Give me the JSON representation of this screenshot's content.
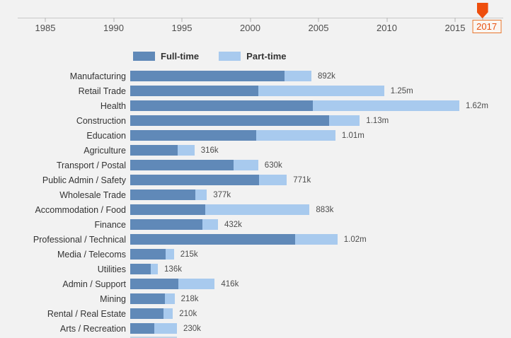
{
  "colors": {
    "full_time": "#6089b8",
    "part_time": "#a8caee",
    "accent_orange": "#ee4e0d",
    "axis_grey": "#c9c9c9",
    "background": "#f2f2f2"
  },
  "timeline": {
    "years": [
      "1985",
      "1990",
      "1995",
      "2000",
      "2005",
      "2010",
      "2015"
    ],
    "current_year": "2017"
  },
  "legend": {
    "full_time_label": "Full-time",
    "part_time_label": "Part-time"
  },
  "chart_data": {
    "type": "bar",
    "orientation": "horizontal",
    "stacked": true,
    "legend_position": "top",
    "units": "thousands of employed persons",
    "xlim": [
      0,
      1870
    ],
    "grid": false,
    "categories": [
      "Manufacturing",
      "Retail Trade",
      "Health",
      "Construction",
      "Education",
      "Agriculture",
      "Transport / Postal",
      "Public Admin / Safety",
      "Wholesale Trade",
      "Accommodation / Food",
      "Finance",
      "Professional / Technical",
      "Media / Telecoms",
      "Utilities",
      "Admin / Support",
      "Mining",
      "Rental / Real Estate",
      "Arts / Recreation"
    ],
    "series": [
      {
        "name": "Full-time",
        "values": [
          760,
          630,
          900,
          980,
          620,
          235,
          510,
          633,
          320,
          370,
          357,
          812,
          175,
          100,
          238,
          170,
          165,
          120
        ]
      },
      {
        "name": "Part-time",
        "values": [
          132,
          620,
          720,
          150,
          390,
          81,
          120,
          138,
          57,
          513,
          75,
          208,
          40,
          36,
          178,
          48,
          45,
          110
        ]
      }
    ],
    "total_labels": [
      "892k",
      "1.25m",
      "1.62m",
      "1.13m",
      "1.01m",
      "316k",
      "630k",
      "771k",
      "377k",
      "883k",
      "432k",
      "1.02m",
      "215k",
      "136k",
      "416k",
      "218k",
      "210k",
      "230k"
    ]
  }
}
